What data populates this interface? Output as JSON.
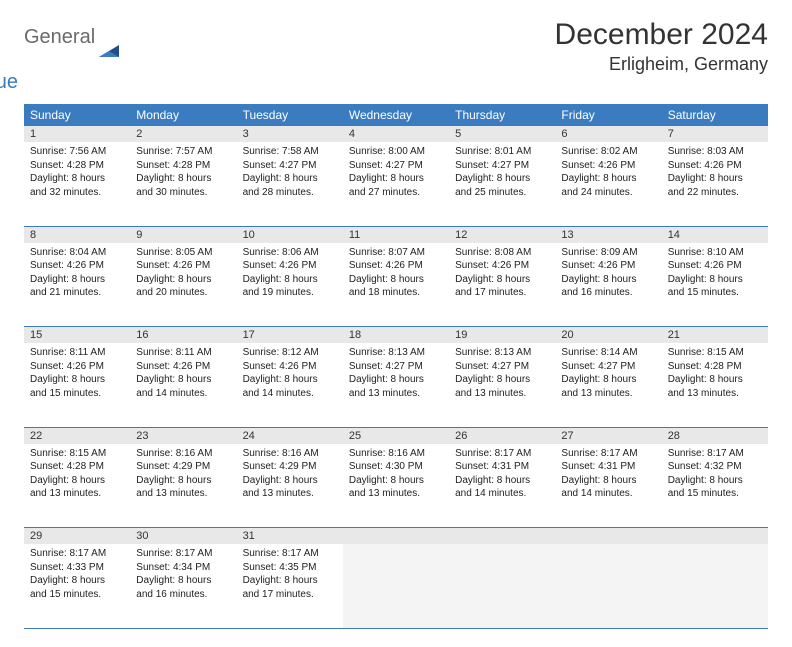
{
  "brand": {
    "general": "General",
    "blue": "Blue"
  },
  "title": "December 2024",
  "location": "Erligheim, Germany",
  "colors": {
    "header_bg": "#3b7bbf",
    "header_fg": "#ffffff",
    "daynum_bg": "#e8e8e8",
    "rule": "#3b7bbf",
    "logo_grey": "#6b6b6b",
    "logo_blue": "#3b7bbf"
  },
  "weekdays": [
    "Sunday",
    "Monday",
    "Tuesday",
    "Wednesday",
    "Thursday",
    "Friday",
    "Saturday"
  ],
  "weeks": [
    [
      {
        "n": "1",
        "sr": "7:56 AM",
        "ss": "4:28 PM",
        "dl": "8 hours and 32 minutes."
      },
      {
        "n": "2",
        "sr": "7:57 AM",
        "ss": "4:28 PM",
        "dl": "8 hours and 30 minutes."
      },
      {
        "n": "3",
        "sr": "7:58 AM",
        "ss": "4:27 PM",
        "dl": "8 hours and 28 minutes."
      },
      {
        "n": "4",
        "sr": "8:00 AM",
        "ss": "4:27 PM",
        "dl": "8 hours and 27 minutes."
      },
      {
        "n": "5",
        "sr": "8:01 AM",
        "ss": "4:27 PM",
        "dl": "8 hours and 25 minutes."
      },
      {
        "n": "6",
        "sr": "8:02 AM",
        "ss": "4:26 PM",
        "dl": "8 hours and 24 minutes."
      },
      {
        "n": "7",
        "sr": "8:03 AM",
        "ss": "4:26 PM",
        "dl": "8 hours and 22 minutes."
      }
    ],
    [
      {
        "n": "8",
        "sr": "8:04 AM",
        "ss": "4:26 PM",
        "dl": "8 hours and 21 minutes."
      },
      {
        "n": "9",
        "sr": "8:05 AM",
        "ss": "4:26 PM",
        "dl": "8 hours and 20 minutes."
      },
      {
        "n": "10",
        "sr": "8:06 AM",
        "ss": "4:26 PM",
        "dl": "8 hours and 19 minutes."
      },
      {
        "n": "11",
        "sr": "8:07 AM",
        "ss": "4:26 PM",
        "dl": "8 hours and 18 minutes."
      },
      {
        "n": "12",
        "sr": "8:08 AM",
        "ss": "4:26 PM",
        "dl": "8 hours and 17 minutes."
      },
      {
        "n": "13",
        "sr": "8:09 AM",
        "ss": "4:26 PM",
        "dl": "8 hours and 16 minutes."
      },
      {
        "n": "14",
        "sr": "8:10 AM",
        "ss": "4:26 PM",
        "dl": "8 hours and 15 minutes."
      }
    ],
    [
      {
        "n": "15",
        "sr": "8:11 AM",
        "ss": "4:26 PM",
        "dl": "8 hours and 15 minutes."
      },
      {
        "n": "16",
        "sr": "8:11 AM",
        "ss": "4:26 PM",
        "dl": "8 hours and 14 minutes."
      },
      {
        "n": "17",
        "sr": "8:12 AM",
        "ss": "4:26 PM",
        "dl": "8 hours and 14 minutes."
      },
      {
        "n": "18",
        "sr": "8:13 AM",
        "ss": "4:27 PM",
        "dl": "8 hours and 13 minutes."
      },
      {
        "n": "19",
        "sr": "8:13 AM",
        "ss": "4:27 PM",
        "dl": "8 hours and 13 minutes."
      },
      {
        "n": "20",
        "sr": "8:14 AM",
        "ss": "4:27 PM",
        "dl": "8 hours and 13 minutes."
      },
      {
        "n": "21",
        "sr": "8:15 AM",
        "ss": "4:28 PM",
        "dl": "8 hours and 13 minutes."
      }
    ],
    [
      {
        "n": "22",
        "sr": "8:15 AM",
        "ss": "4:28 PM",
        "dl": "8 hours and 13 minutes."
      },
      {
        "n": "23",
        "sr": "8:16 AM",
        "ss": "4:29 PM",
        "dl": "8 hours and 13 minutes."
      },
      {
        "n": "24",
        "sr": "8:16 AM",
        "ss": "4:29 PM",
        "dl": "8 hours and 13 minutes."
      },
      {
        "n": "25",
        "sr": "8:16 AM",
        "ss": "4:30 PM",
        "dl": "8 hours and 13 minutes."
      },
      {
        "n": "26",
        "sr": "8:17 AM",
        "ss": "4:31 PM",
        "dl": "8 hours and 14 minutes."
      },
      {
        "n": "27",
        "sr": "8:17 AM",
        "ss": "4:31 PM",
        "dl": "8 hours and 14 minutes."
      },
      {
        "n": "28",
        "sr": "8:17 AM",
        "ss": "4:32 PM",
        "dl": "8 hours and 15 minutes."
      }
    ],
    [
      {
        "n": "29",
        "sr": "8:17 AM",
        "ss": "4:33 PM",
        "dl": "8 hours and 15 minutes."
      },
      {
        "n": "30",
        "sr": "8:17 AM",
        "ss": "4:34 PM",
        "dl": "8 hours and 16 minutes."
      },
      {
        "n": "31",
        "sr": "8:17 AM",
        "ss": "4:35 PM",
        "dl": "8 hours and 17 minutes."
      },
      null,
      null,
      null,
      null
    ]
  ],
  "labels": {
    "sunrise": "Sunrise: ",
    "sunset": "Sunset: ",
    "daylight": "Daylight: "
  }
}
